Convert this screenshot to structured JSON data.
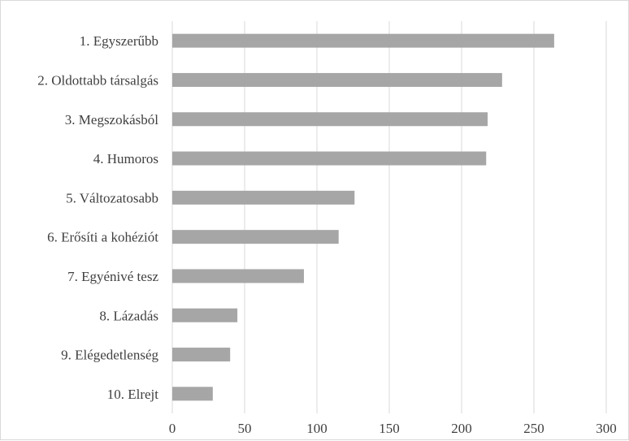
{
  "chart_data": {
    "type": "bar",
    "orientation": "horizontal",
    "categories": [
      "1. Egyszerűbb",
      "2. Oldottabb társalgás",
      "3. Megszokásból",
      "4. Humoros",
      "5. Változatosabb",
      "6. Erősíti a kohéziót",
      "7. Egyénivé tesz",
      "8. Lázadás",
      "9. Elégedetlenség",
      "10. Elrejt"
    ],
    "values": [
      264,
      228,
      218,
      217,
      126,
      115,
      91,
      45,
      40,
      28
    ],
    "xlim": [
      0,
      300
    ],
    "xticks": [
      "0",
      "50",
      "100",
      "150",
      "200",
      "250",
      "300"
    ],
    "grid": "vertical",
    "bar_color": "#a6a6a6",
    "grid_color": "#d9d9d9"
  }
}
